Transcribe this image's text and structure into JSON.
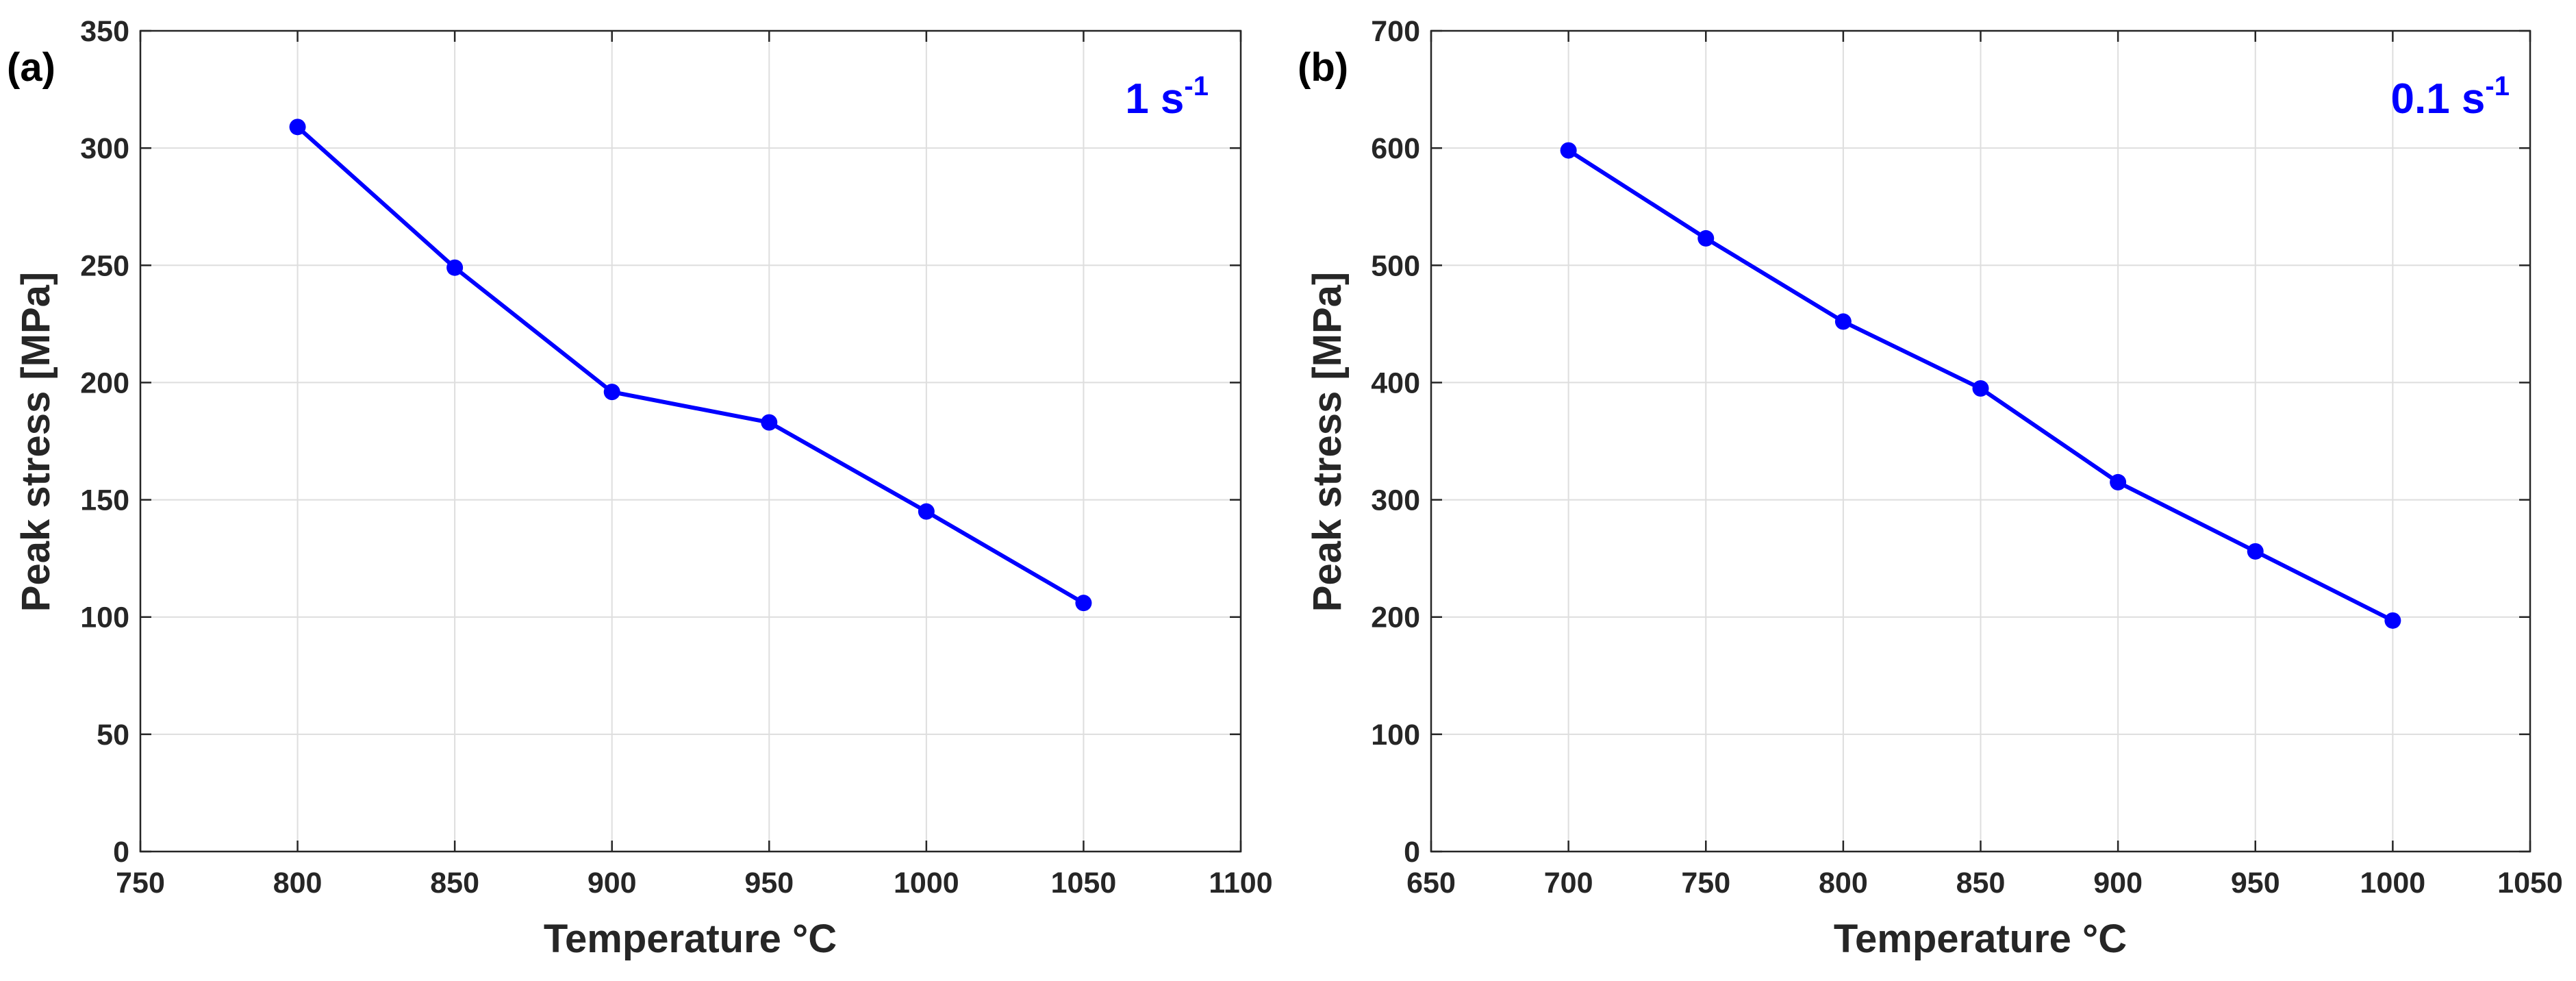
{
  "chart_data": [
    {
      "type": "line",
      "panel_label": "(a)",
      "annotation": {
        "base": "1 s",
        "sup": "-1"
      },
      "xlabel": "Temperature °C",
      "ylabel": "Peak stress [MPa]",
      "xlim": [
        750,
        1100
      ],
      "ylim": [
        0,
        350
      ],
      "xticks": [
        750,
        800,
        850,
        900,
        950,
        1000,
        1050,
        1100
      ],
      "yticks": [
        0,
        50,
        100,
        150,
        200,
        250,
        300,
        350
      ],
      "grid": true,
      "color": "#0000ff",
      "series": [
        {
          "x": [
            800,
            850,
            900,
            950,
            1000,
            1050
          ],
          "y": [
            309,
            249,
            196,
            183,
            145,
            106
          ]
        }
      ]
    },
    {
      "type": "line",
      "panel_label": "(b)",
      "annotation": {
        "base": "0.1 s",
        "sup": "-1"
      },
      "xlabel": "Temperature °C",
      "ylabel": "Peak stress [MPa]",
      "xlim": [
        650,
        1050
      ],
      "ylim": [
        0,
        700
      ],
      "xticks": [
        650,
        700,
        750,
        800,
        850,
        900,
        950,
        1000,
        1050
      ],
      "yticks": [
        0,
        100,
        200,
        300,
        400,
        500,
        600,
        700
      ],
      "grid": true,
      "color": "#0000ff",
      "series": [
        {
          "x": [
            700,
            750,
            800,
            850,
            900,
            950,
            1000
          ],
          "y": [
            598,
            523,
            452,
            395,
            315,
            256,
            197
          ]
        }
      ]
    }
  ]
}
